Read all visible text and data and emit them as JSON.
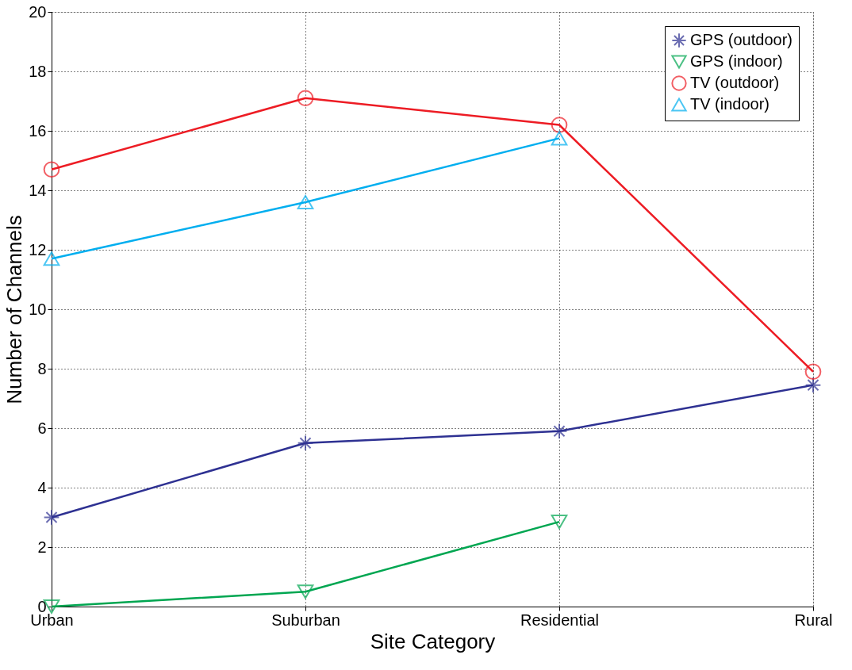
{
  "chart_data": {
    "type": "line",
    "xlabel": "Site Category",
    "ylabel": "Number of Channels",
    "categories": [
      "Urban",
      "Suburban",
      "Residential",
      "Rural"
    ],
    "series": [
      {
        "name": "GPS (outdoor)",
        "color": "#2e3192",
        "marker": "cross",
        "values": [
          3.0,
          5.5,
          5.9,
          7.45
        ]
      },
      {
        "name": "GPS (indoor)",
        "color": "#00a651",
        "marker": "triangle-down",
        "values": [
          0,
          0.5,
          2.85,
          null
        ]
      },
      {
        "name": "TV (outdoor)",
        "color": "#ed1c24",
        "marker": "circle",
        "values": [
          14.7,
          17.1,
          16.2,
          7.9
        ]
      },
      {
        "name": "TV (indoor)",
        "color": "#00aeef",
        "marker": "triangle-up",
        "values": [
          11.7,
          13.6,
          15.75,
          null
        ]
      }
    ],
    "ylim": [
      0,
      20
    ],
    "yticks": [
      0,
      2,
      4,
      6,
      8,
      10,
      12,
      14,
      16,
      18,
      20
    ],
    "grid": true,
    "legend": "top right",
    "line_style": "solid"
  }
}
